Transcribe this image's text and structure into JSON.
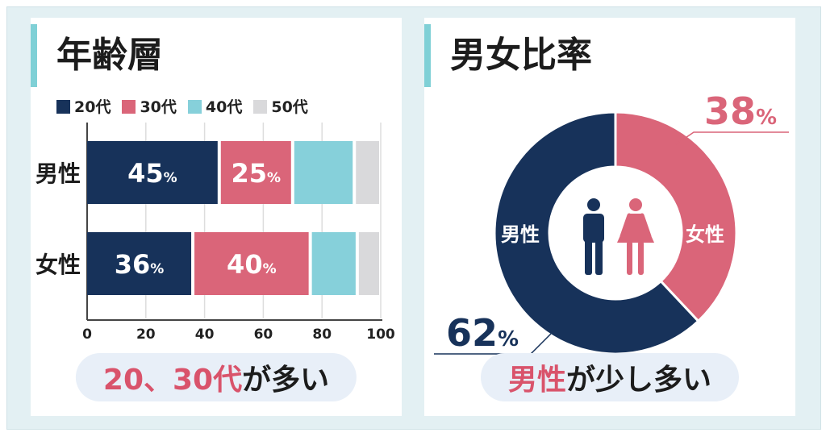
{
  "colors": {
    "20s": "#17325a",
    "30s": "#da6579",
    "40s": "#86d0da",
    "50s": "#d9d9db"
  },
  "chart_data": [
    {
      "type": "bar",
      "orientation": "horizontal",
      "stacked": true,
      "title": "年齢層",
      "categories": [
        "男性",
        "女性"
      ],
      "series": [
        {
          "name": "20代",
          "values": [
            45,
            36
          ]
        },
        {
          "name": "30代",
          "values": [
            25,
            40
          ]
        },
        {
          "name": "40代",
          "values": [
            21,
            16
          ]
        },
        {
          "name": "50代",
          "values": [
            9,
            8
          ]
        }
      ],
      "data_labels": [
        [
          "45",
          "25",
          "",
          ""
        ],
        [
          "36",
          "40",
          "",
          ""
        ]
      ],
      "xlim": [
        0,
        100
      ],
      "xticks": [
        "0",
        "20",
        "40",
        "60",
        "80",
        "100"
      ],
      "legend": "top",
      "grid": true
    },
    {
      "type": "pie",
      "donut": true,
      "title": "男女比率",
      "labels": [
        "男性",
        "女性"
      ],
      "values": [
        62,
        38
      ],
      "value_labels": [
        "62",
        "38"
      ]
    }
  ],
  "left": {
    "summary_hl": "20、30代",
    "summary_rest": "が多い"
  },
  "right": {
    "summary_hl": "男性",
    "summary_rest": "が少し多い"
  },
  "percent": "%"
}
